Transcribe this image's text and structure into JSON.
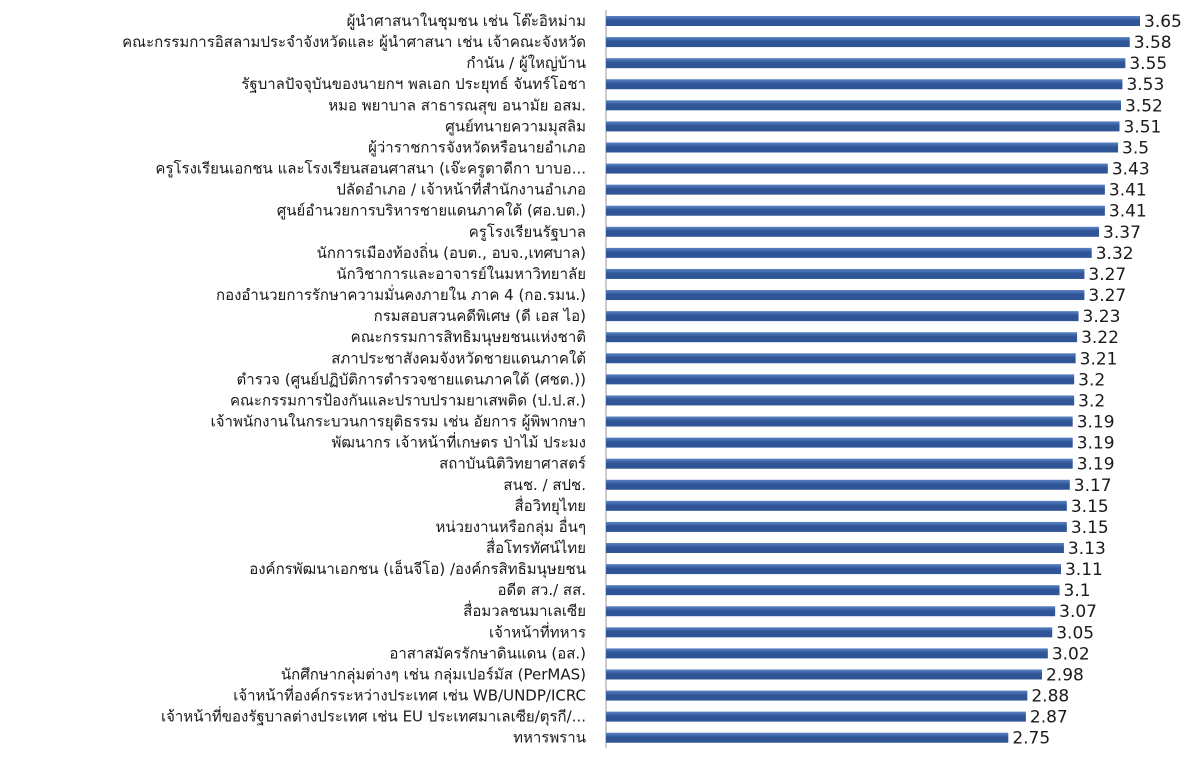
{
  "chart_data": {
    "type": "bar",
    "orientation": "horizontal",
    "title": "",
    "xlabel": "",
    "ylabel": "",
    "xlim": [
      0,
      3.65
    ],
    "grid": false,
    "legend": "none",
    "bar_color": "#2f5597",
    "bar_highlight_color": "#5b84c4",
    "categories": [
      "ผู้นำศาสนาในชุมชน เช่น โต๊ะอิหม่าม",
      "คณะกรรมการอิสลามประจำจังหวัดและ ผู้นำศาสนา เช่น เจ้าคณะจังหวัด",
      "กำนัน / ผู้ใหญ่บ้าน",
      "รัฐบาลปัจจุบันของนายกฯ พลเอก ประยุทธ์ จันทร์โอชา",
      "หมอ พยาบาล สาธารณสุข อนามัย อสม.",
      "ศูนย์ทนายความมุสลิม",
      "ผู้ว่าราชการจังหวัดหรือนายอำเภอ",
      "ครูโรงเรียนเอกชน และโรงเรียนสอนศาสนา (เจ๊ะครูตาดีกา บาบอ...",
      "ปลัดอำเภอ / เจ้าหน้าที่สำนักงานอำเภอ",
      "ศูนย์อำนวยการบริหารชายแดนภาคใต้ (ศอ.บต.)",
      "ครูโรงเรียนรัฐบาล",
      "นักการเมืองท้องถิ่น (อบต., อบจ.,เทศบาล)",
      "นักวิชาการและอาจารย์ในมหาวิทยาลัย",
      "กองอำนวยการรักษาความมั่นคงภายใน ภาค 4 (กอ.รมน.)",
      "กรมสอบสวนคดีพิเศษ (ดี เอส ไอ)",
      "คณะกรรมการสิทธิมนุษยชนแห่งชาติ",
      "สภาประชาสังคมจังหวัดชายแดนภาคใต้",
      "ตำรวจ (ศูนย์ปฏิบัติการตำรวจชายแดนภาคใต้ (ศชต.))",
      "คณะกรรมการป้องกันและปราบปรามยาเสพติด (ป.ป.ส.)",
      "เจ้าพนักงานในกระบวนการยุติธรรม เช่น อัยการ ผู้พิพากษา",
      "พัฒนากร เจ้าหน้าที่เกษตร ป่าไม้ ประมง",
      "สถาบันนิติวิทยาศาสตร์",
      "สนช. / สปช.",
      "สื่อวิทยุไทย",
      "หน่วยงานหรือกลุ่ม อื่นๆ",
      "สื่อโทรทัศน์ไทย",
      "องค์กรพัฒนาเอกชน (เอ็นจีโอ) /องค์กรสิทธิมนุษยชน",
      "อดีต สว./ สส.",
      "สื่อมวลชนมาเลเซีย",
      "เจ้าหน้าที่ทหาร",
      "อาสาสมัครรักษาดินแดน (อส.)",
      "นักศึกษากลุ่มต่างๆ เช่น กลุ่มเปอร์มัส (PerMAS)",
      "เจ้าหน้าที่องค์กรระหว่างประเทศ เช่น WB/UNDP/ICRC",
      "เจ้าหน้าที่ของรัฐบาลต่างประเทศ เช่น EU ประเทศมาเลเซีย/ตุรกี/...",
      "ทหารพราน"
    ],
    "values": [
      3.65,
      3.58,
      3.55,
      3.53,
      3.52,
      3.51,
      3.5,
      3.43,
      3.41,
      3.41,
      3.37,
      3.32,
      3.27,
      3.27,
      3.23,
      3.22,
      3.21,
      3.2,
      3.2,
      3.19,
      3.19,
      3.19,
      3.17,
      3.15,
      3.15,
      3.13,
      3.11,
      3.1,
      3.07,
      3.05,
      3.02,
      2.98,
      2.88,
      2.87,
      2.75
    ],
    "value_labels": [
      "3.65",
      "3.58",
      "3.55",
      "3.53",
      "3.52",
      "3.51",
      "3.5",
      "3.43",
      "3.41",
      "3.41",
      "3.37",
      "3.32",
      "3.27",
      "3.27",
      "3.23",
      "3.22",
      "3.21",
      "3.2",
      "3.2",
      "3.19",
      "3.19",
      "3.19",
      "3.17",
      "3.15",
      "3.15",
      "3.13",
      "3.11",
      "3.1",
      "3.07",
      "3.05",
      "3.02",
      "2.98",
      "2.88",
      "2.87",
      "2.75"
    ]
  }
}
